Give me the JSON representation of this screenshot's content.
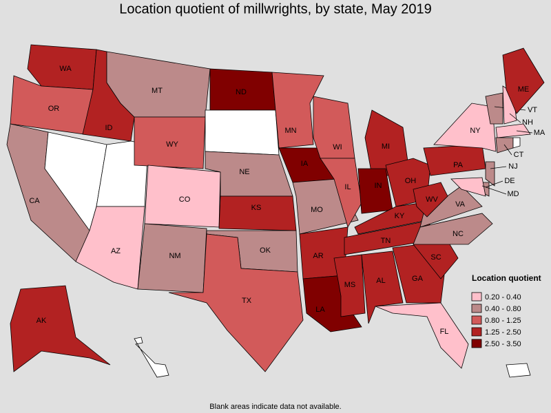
{
  "title": "Location quotient of millwrights, by state, May 2019",
  "note": "Blank areas indicate data not available.",
  "legend": {
    "title": "Location quotient",
    "bins": [
      {
        "label": "0.20 - 0.40",
        "color": "#ffc0cb"
      },
      {
        "label": "0.40 - 0.80",
        "color": "#bc8a8a"
      },
      {
        "label": "0.80 - 1.25",
        "color": "#d25a5a"
      },
      {
        "label": "1.25 - 2.50",
        "color": "#b22222"
      },
      {
        "label": "2.50 - 3.50",
        "color": "#800000"
      }
    ]
  },
  "states": [
    {
      "label": "WA",
      "bin": 3
    },
    {
      "label": "OR",
      "bin": 2
    },
    {
      "label": "CA",
      "bin": 1
    },
    {
      "bin": null
    },
    {
      "label": "ID",
      "bin": 3
    },
    {
      "bin": null
    },
    {
      "label": "AZ",
      "bin": 0
    },
    {
      "label": "MT",
      "bin": 1
    },
    {
      "label": "WY",
      "bin": 2
    },
    {
      "label": "CO",
      "bin": 0
    },
    {
      "label": "NM",
      "bin": 1
    },
    {
      "label": "ND",
      "bin": 4
    },
    {
      "bin": null
    },
    {
      "label": "NE",
      "bin": 1
    },
    {
      "label": "KS",
      "bin": 3
    },
    {
      "label": "OK",
      "bin": 1
    },
    {
      "label": "TX",
      "bin": 2
    },
    {
      "label": "MN",
      "bin": 2
    },
    {
      "label": "IA",
      "bin": 4
    },
    {
      "label": "MO",
      "bin": 1
    },
    {
      "label": "AR",
      "bin": 3
    },
    {
      "label": "LA",
      "bin": 4
    },
    {
      "label": "WI",
      "bin": 2
    },
    {
      "label": "IL",
      "bin": 2
    },
    {
      "label": "MI",
      "bin": 3
    },
    {
      "label": "IN",
      "bin": 4
    },
    {
      "label": "OH",
      "bin": 3
    },
    {
      "label": "KY",
      "bin": 3
    },
    {
      "label": "TN",
      "bin": 3
    },
    {
      "label": "MS",
      "bin": 3
    },
    {
      "label": "AL",
      "bin": 3
    },
    {
      "label": "GA",
      "bin": 3
    },
    {
      "label": "FL",
      "bin": 0
    },
    {
      "label": "SC",
      "bin": 3
    },
    {
      "label": "NC",
      "bin": 1
    },
    {
      "label": "VA",
      "bin": 1
    },
    {
      "label": "WV",
      "bin": 3
    },
    {
      "label": "PA",
      "bin": 3
    },
    {
      "label": "NY",
      "bin": 0
    },
    {
      "label": "VT",
      "bin": 1
    },
    {
      "label": "NH",
      "bin": 0
    },
    {
      "label": "ME",
      "bin": 3
    },
    {
      "label": "MA",
      "bin": 0
    },
    {
      "label": "CT",
      "bin": 1
    },
    {
      "bin": null
    },
    {
      "label": "NJ",
      "bin": 1
    },
    {
      "label": "DE",
      "bin": 1
    },
    {
      "label": "MD",
      "bin": 0
    },
    {
      "label": "AK",
      "bin": 3
    },
    {
      "bin": null
    },
    {
      "bin": null
    }
  ]
}
